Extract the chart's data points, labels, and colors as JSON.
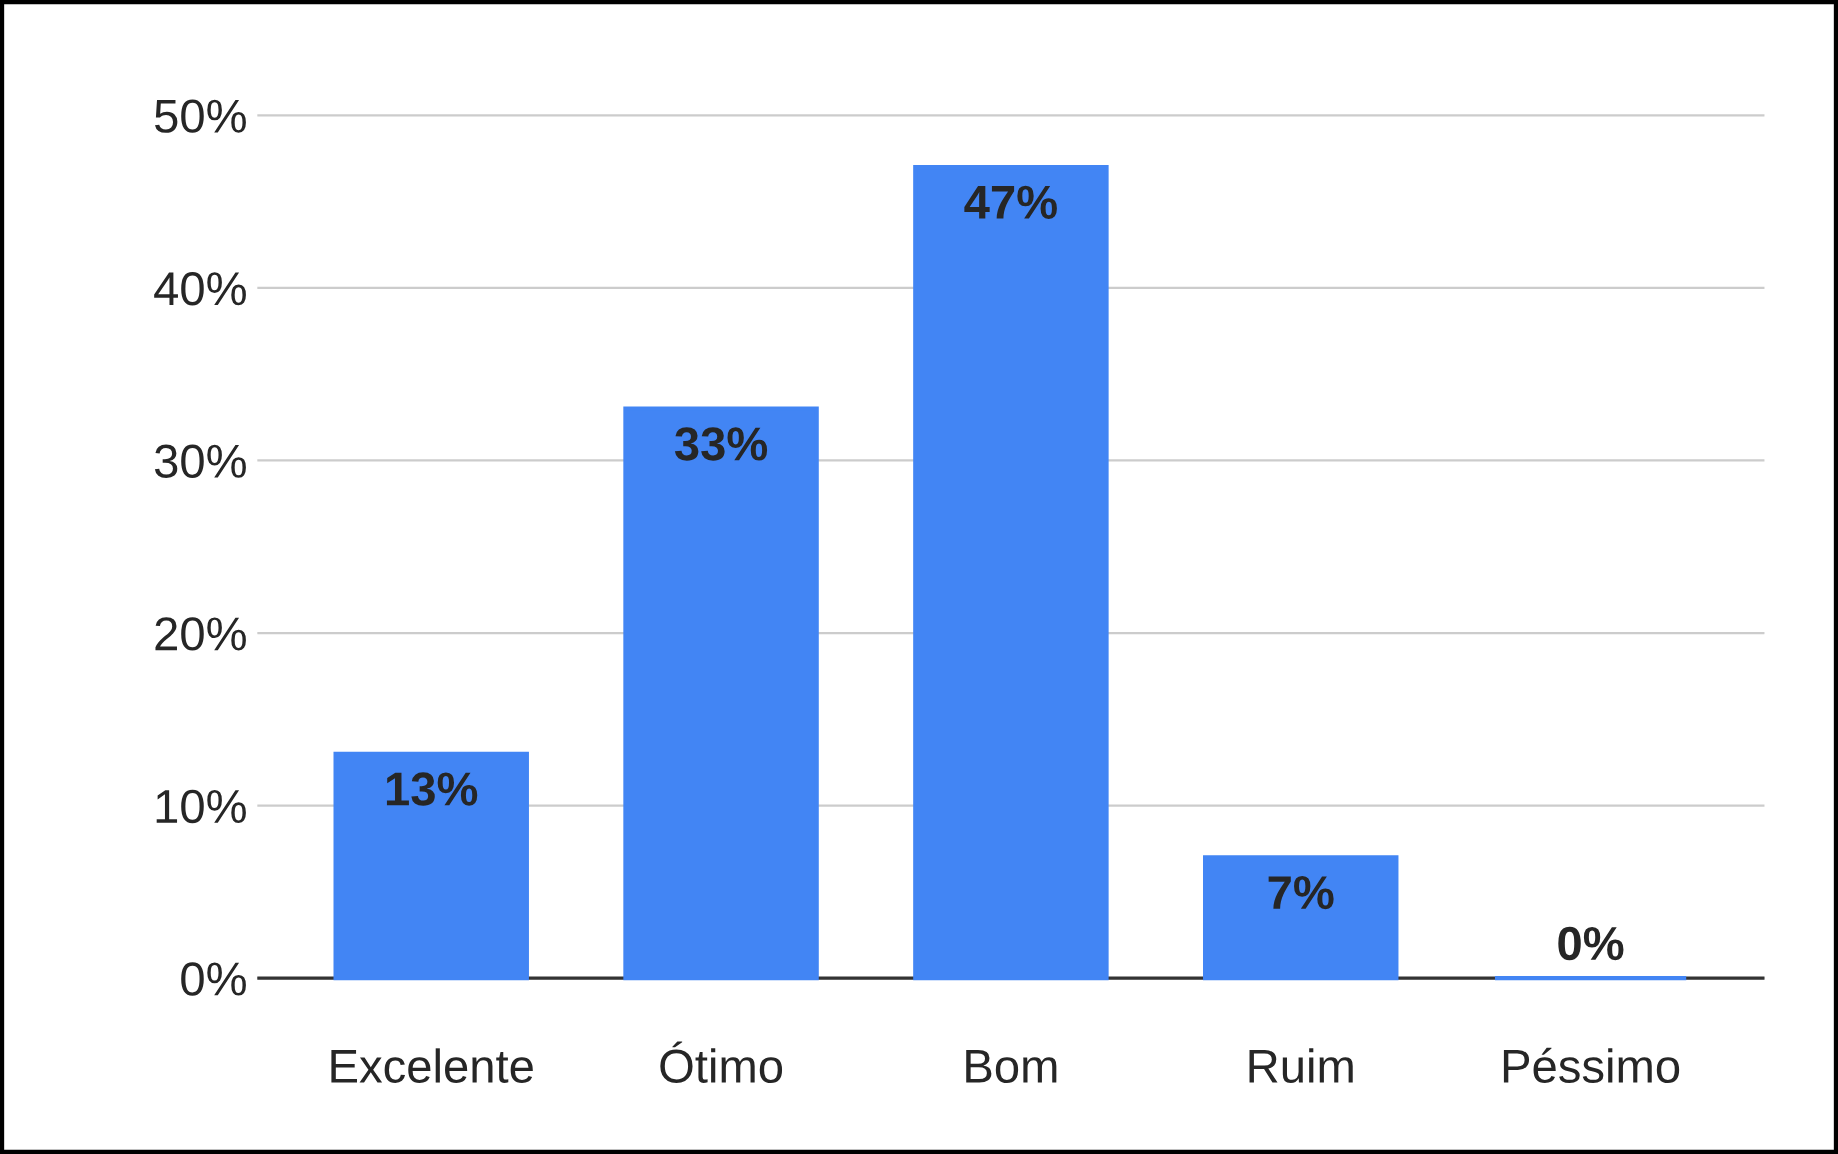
{
  "chart_data": {
    "type": "bar",
    "categories": [
      "Excelente",
      "Ótimo",
      "Bom",
      "Ruim",
      "Péssimo"
    ],
    "values": [
      13,
      33,
      47,
      7,
      0
    ],
    "value_labels": [
      "13%",
      "33%",
      "47%",
      "7%",
      "0%"
    ],
    "color": "#4285f4",
    "ylim": [
      0,
      50
    ],
    "yticks": [
      {
        "value": 0,
        "label": "0%"
      },
      {
        "value": 10,
        "label": "10%"
      },
      {
        "value": 20,
        "label": "20%"
      },
      {
        "value": 30,
        "label": "30%"
      },
      {
        "value": 40,
        "label": "40%"
      },
      {
        "value": 50,
        "label": "50%"
      }
    ],
    "grid": "y",
    "legend": false
  }
}
